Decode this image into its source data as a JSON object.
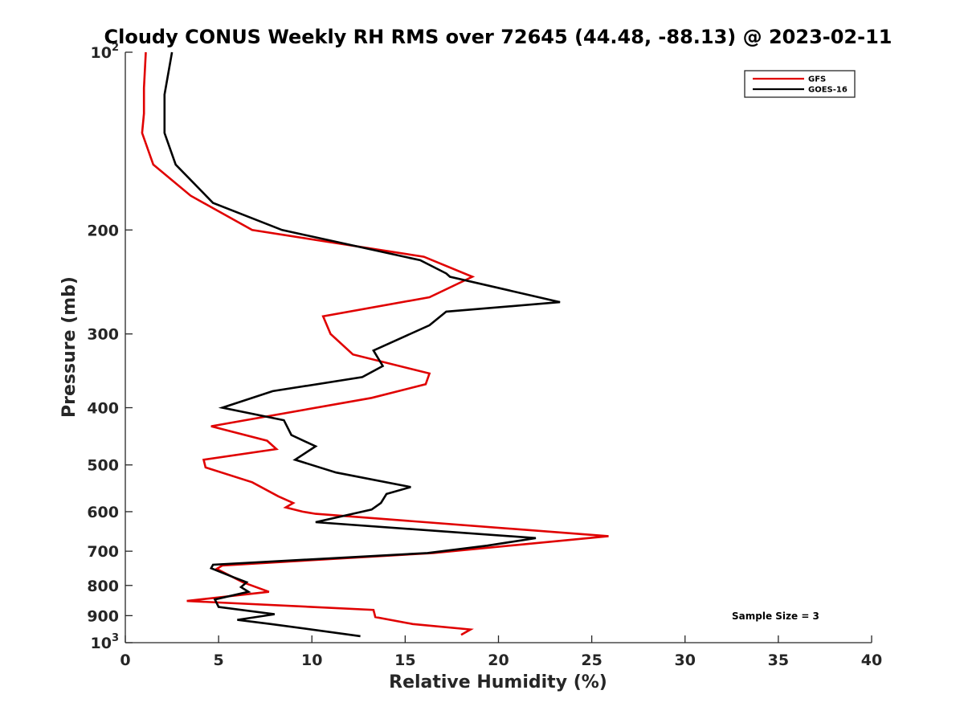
{
  "chart_data": {
    "type": "line",
    "title": "Cloudy CONUS Weekly RH RMS over 72645 (44.48, -88.13) @ 2023-02-11",
    "xlabel": "Relative Humidity (%)",
    "ylabel": "Pressure (mb)",
    "xlim": [
      0,
      40
    ],
    "ylim": [
      100,
      1000
    ],
    "yscale": "log",
    "y_reversed": true,
    "xticks": [
      0,
      5,
      10,
      15,
      20,
      25,
      30,
      35,
      40
    ],
    "yticks": [
      {
        "value": 100,
        "label": "10",
        "sup": "2"
      },
      {
        "value": 200,
        "label": "200"
      },
      {
        "value": 300,
        "label": "300"
      },
      {
        "value": 400,
        "label": "400"
      },
      {
        "value": 500,
        "label": "500"
      },
      {
        "value": 600,
        "label": "600"
      },
      {
        "value": 700,
        "label": "700"
      },
      {
        "value": 800,
        "label": "800"
      },
      {
        "value": 900,
        "label": "900"
      },
      {
        "value": 1000,
        "label": "10",
        "sup": "3"
      }
    ],
    "grid": false,
    "legend_position": "top-right",
    "annotation": "Sample Size = 3",
    "series": [
      {
        "name": "GFS",
        "color": "#e00000",
        "points": [
          [
            1.1,
            100
          ],
          [
            1.0,
            115
          ],
          [
            1.0,
            127
          ],
          [
            0.9,
            137
          ],
          [
            1.5,
            155
          ],
          [
            3.5,
            175
          ],
          [
            6.8,
            200
          ],
          [
            16.0,
            222
          ],
          [
            18.6,
            240
          ],
          [
            16.3,
            260
          ],
          [
            10.6,
            280
          ],
          [
            11.0,
            300
          ],
          [
            12.2,
            325
          ],
          [
            16.3,
            350
          ],
          [
            16.1,
            365
          ],
          [
            13.2,
            385
          ],
          [
            4.6,
            430
          ],
          [
            7.6,
            455
          ],
          [
            8.1,
            470
          ],
          [
            4.2,
            490
          ],
          [
            4.3,
            505
          ],
          [
            6.8,
            535
          ],
          [
            8.2,
            565
          ],
          [
            9.0,
            580
          ],
          [
            8.6,
            590
          ],
          [
            9.5,
            600
          ],
          [
            10.2,
            605
          ],
          [
            25.9,
            660
          ],
          [
            16.5,
            705
          ],
          [
            5.2,
            740
          ],
          [
            4.9,
            750
          ],
          [
            6.3,
            790
          ],
          [
            7.7,
            820
          ],
          [
            3.3,
            850
          ],
          [
            13.3,
            880
          ],
          [
            13.4,
            905
          ],
          [
            15.4,
            930
          ],
          [
            18.5,
            950
          ],
          [
            18.0,
            970
          ]
        ]
      },
      {
        "name": "GOES-16",
        "color": "#000000",
        "points": [
          [
            2.5,
            100
          ],
          [
            2.1,
            118
          ],
          [
            2.1,
            128
          ],
          [
            2.1,
            137
          ],
          [
            2.7,
            155
          ],
          [
            4.7,
            180
          ],
          [
            8.4,
            200
          ],
          [
            15.8,
            225
          ],
          [
            17.2,
            237
          ],
          [
            17.4,
            240
          ],
          [
            23.3,
            265
          ],
          [
            17.2,
            275
          ],
          [
            16.3,
            290
          ],
          [
            13.3,
            320
          ],
          [
            13.8,
            340
          ],
          [
            12.7,
            355
          ],
          [
            7.9,
            375
          ],
          [
            5.2,
            400
          ],
          [
            8.5,
            420
          ],
          [
            8.9,
            445
          ],
          [
            10.2,
            465
          ],
          [
            9.1,
            490
          ],
          [
            11.3,
            515
          ],
          [
            15.3,
            545
          ],
          [
            14.0,
            560
          ],
          [
            13.7,
            580
          ],
          [
            13.2,
            595
          ],
          [
            10.2,
            625
          ],
          [
            22.0,
            665
          ],
          [
            19.4,
            685
          ],
          [
            16.2,
            705
          ],
          [
            4.7,
            738
          ],
          [
            4.6,
            748
          ],
          [
            5.8,
            775
          ],
          [
            6.5,
            790
          ],
          [
            6.2,
            805
          ],
          [
            6.6,
            820
          ],
          [
            4.8,
            845
          ],
          [
            5.0,
            870
          ],
          [
            8.0,
            895
          ],
          [
            6.0,
            915
          ],
          [
            7.8,
            930
          ],
          [
            12.6,
            975
          ]
        ]
      }
    ]
  }
}
